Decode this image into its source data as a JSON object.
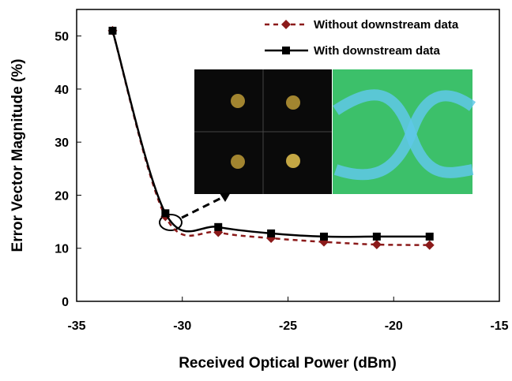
{
  "chart_data": {
    "type": "line",
    "x_label": "Received Optical Power (dBm)",
    "y_label": "Error Vector Magnitude (%)",
    "xlim": [
      -35,
      -15
    ],
    "xticks": [
      -35,
      -30,
      -25,
      -20,
      -15
    ],
    "ylim": [
      0,
      55
    ],
    "yticks": [
      0,
      10,
      20,
      30,
      40,
      50
    ],
    "legend": "upper right",
    "series": [
      {
        "name": "Without downstream data",
        "color": "#8b1a1a",
        "marker": "diamond",
        "dash": true,
        "x": [
          -33.3,
          -30.8,
          -28.3,
          -25.8,
          -23.3,
          -20.8,
          -18.3
        ],
        "values": [
          51,
          16,
          13,
          11.9,
          11.2,
          10.7,
          10.6
        ]
      },
      {
        "name": "With downstream data",
        "color": "#000000",
        "marker": "square",
        "dash": false,
        "x": [
          -33.3,
          -30.8,
          -28.3,
          -25.8,
          -23.3,
          -20.8,
          -18.3
        ],
        "values": [
          51,
          16.6,
          14,
          12.8,
          12.2,
          12.2,
          12.2
        ]
      }
    ]
  }
}
